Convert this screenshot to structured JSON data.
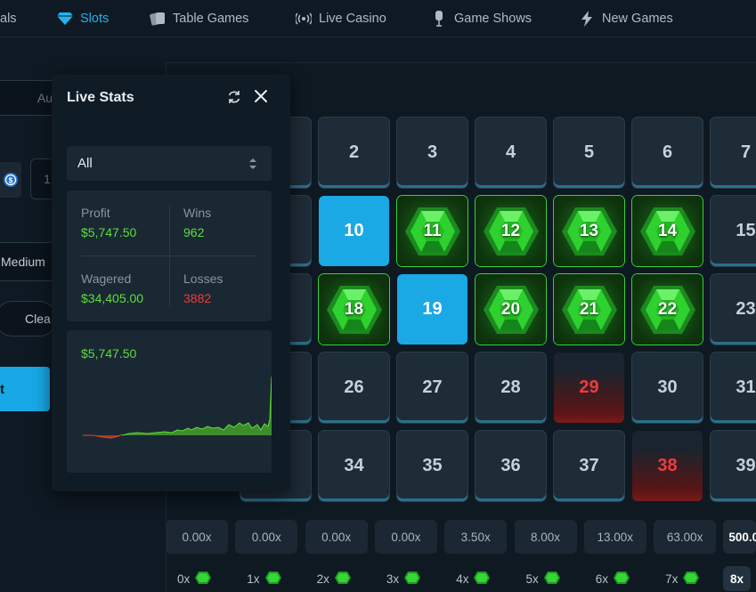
{
  "nav": {
    "items": [
      {
        "label": "als",
        "icon": "none"
      },
      {
        "label": "Slots",
        "icon": "diamond-icon",
        "active": true
      },
      {
        "label": "Table Games",
        "icon": "cards-icon"
      },
      {
        "label": "Live Casino",
        "icon": "broadcast-icon"
      },
      {
        "label": "Game Shows",
        "icon": "mic-icon"
      },
      {
        "label": "New Games",
        "icon": "bolt-icon"
      }
    ]
  },
  "left_panel": {
    "auto_tab_partial": "Au",
    "amount_partial": "1",
    "risk_partial": "Medium",
    "clear_partial": "Clea",
    "bet_button_partial": "t"
  },
  "live_stats": {
    "title": "Live Stats",
    "filter": "All",
    "profit_label": "Profit",
    "profit_value": "$5,747.50",
    "wins_label": "Wins",
    "wins_value": "962",
    "wagered_label": "Wagered",
    "wagered_value": "$34,405.00",
    "losses_label": "Losses",
    "losses_value": "3882",
    "chart_value": "$5,747.50"
  },
  "board": {
    "tiles": [
      {
        "label": "2",
        "state": "normal"
      },
      {
        "label": "3",
        "state": "normal"
      },
      {
        "label": "4",
        "state": "normal"
      },
      {
        "label": "5",
        "state": "normal"
      },
      {
        "label": "6",
        "state": "normal"
      },
      {
        "label": "7",
        "state": "normal"
      },
      {
        "label": "10",
        "state": "selected"
      },
      {
        "label": "11",
        "state": "hit"
      },
      {
        "label": "12",
        "state": "hit"
      },
      {
        "label": "13",
        "state": "hit"
      },
      {
        "label": "14",
        "state": "hit"
      },
      {
        "label": "15",
        "state": "normal"
      },
      {
        "label": "18",
        "state": "hit"
      },
      {
        "label": "19",
        "state": "selected"
      },
      {
        "label": "20",
        "state": "hit"
      },
      {
        "label": "21",
        "state": "hit"
      },
      {
        "label": "22",
        "state": "hit"
      },
      {
        "label": "23",
        "state": "normal"
      },
      {
        "label": "26",
        "state": "normal"
      },
      {
        "label": "27",
        "state": "normal"
      },
      {
        "label": "28",
        "state": "normal"
      },
      {
        "label": "29",
        "state": "lose"
      },
      {
        "label": "30",
        "state": "normal"
      },
      {
        "label": "31",
        "state": "normal"
      },
      {
        "label": "34",
        "state": "normal"
      },
      {
        "label": "35",
        "state": "normal"
      },
      {
        "label": "36",
        "state": "normal"
      },
      {
        "label": "37",
        "state": "normal"
      },
      {
        "label": "38",
        "state": "lose"
      },
      {
        "label": "39",
        "state": "normal"
      }
    ]
  },
  "payouts": [
    "0.00x",
    "0.00x",
    "0.00x",
    "0.00x",
    "3.50x",
    "8.00x",
    "13.00x",
    "63.00x",
    "500.0"
  ],
  "hits": [
    "0x",
    "1x",
    "2x",
    "3x",
    "4x",
    "5x",
    "6x",
    "7x",
    "8x"
  ],
  "colors": {
    "accent": "#1fb3f1",
    "green": "#5fdc3c",
    "red": "#ef3b3b"
  }
}
